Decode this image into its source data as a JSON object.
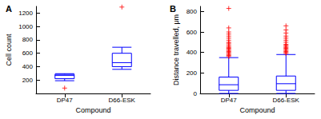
{
  "chart_data": [
    {
      "type": "boxplot",
      "title": "A",
      "x_label": "Compound",
      "y_label": "Cell count",
      "categories": [
        "DP47",
        "D66-ESK"
      ],
      "values": [
        [
          190,
          220,
          270,
          285,
          295
        ],
        [
          360,
          400,
          460,
          600,
          690
        ]
      ],
      "outliers": [
        [
          80
        ],
        [
          1290
        ]
      ],
      "color": "#0000ff",
      "ylim": [
        0,
        1300
      ],
      "yticks": [
        200,
        400,
        600,
        800,
        1000,
        1200
      ]
    },
    {
      "type": "boxplot",
      "title": "B",
      "x_label": "Compound",
      "y_label": "Distance travelled, μm",
      "categories": [
        "DP47",
        "D66-ESK"
      ],
      "values": [
        [
          0,
          30,
          85,
          160,
          350
        ],
        [
          0,
          30,
          95,
          170,
          380
        ]
      ],
      "outliers": [
        [
          360,
          370,
          380,
          390,
          400,
          410,
          420,
          430,
          440,
          450,
          460,
          475,
          490,
          500,
          520,
          540,
          560,
          580,
          600,
          640,
          830
        ],
        [
          390,
          400,
          410,
          420,
          430,
          440,
          450,
          460,
          470,
          480,
          500,
          520,
          540,
          560,
          590,
          620,
          660
        ]
      ],
      "color": "#0000ff",
      "ylim": [
        0,
        850
      ],
      "yticks": [
        0,
        200,
        400,
        600,
        800
      ]
    }
  ]
}
